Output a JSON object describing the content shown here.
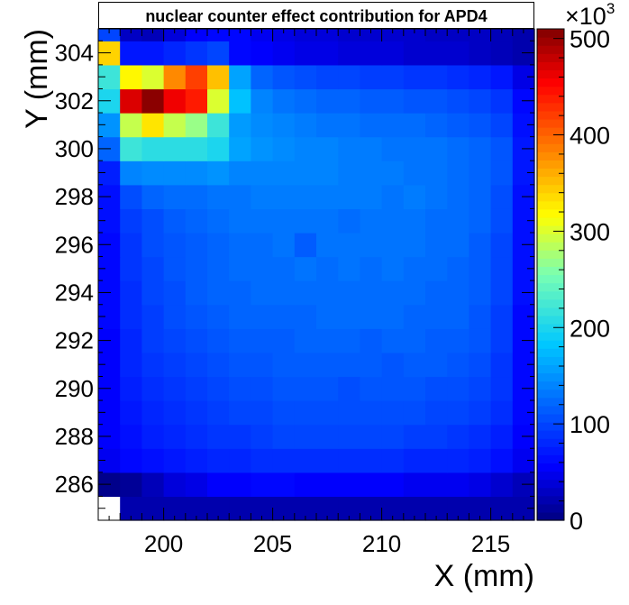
{
  "chart_data": {
    "type": "heatmap",
    "title": "nuclear counter effect contribution for APD4",
    "xlabel": "X (mm)",
    "ylabel": "Y (mm)",
    "xlim": [
      197,
      217
    ],
    "ylim": [
      284.5,
      305
    ],
    "x_ticks": [
      200,
      205,
      210,
      215
    ],
    "y_ticks": [
      286,
      288,
      290,
      292,
      294,
      296,
      298,
      300,
      302,
      304
    ],
    "colorbar": {
      "min": 0,
      "max": 510,
      "ticks": [
        0,
        100,
        200,
        300,
        400,
        500
      ],
      "multiplier_label": "×10",
      "multiplier_exponent": "3"
    },
    "x_bins": [
      197,
      198,
      199,
      200,
      201,
      202,
      203,
      204,
      205,
      206,
      207,
      208,
      209,
      210,
      211,
      212,
      213,
      214,
      215,
      216,
      217
    ],
    "y_bins": [
      284.5,
      285.5,
      286.5,
      287.5,
      288.5,
      289.5,
      290.5,
      291.5,
      292.5,
      293.5,
      294.5,
      295.5,
      296.5,
      297.5,
      298.5,
      299.5,
      300.5,
      301.5,
      302.5,
      303.5,
      304.5,
      305
    ],
    "values": [
      [
        -1,
        20,
        20,
        20,
        20,
        20,
        20,
        20,
        20,
        20,
        20,
        20,
        20,
        20,
        20,
        20,
        20,
        20,
        20,
        20
      ],
      [
        5,
        10,
        25,
        40,
        45,
        55,
        55,
        60,
        60,
        55,
        55,
        55,
        55,
        55,
        50,
        50,
        50,
        45,
        35,
        25
      ],
      [
        50,
        60,
        65,
        70,
        75,
        80,
        80,
        85,
        85,
        85,
        85,
        85,
        85,
        85,
        80,
        80,
        80,
        75,
        65,
        50
      ],
      [
        55,
        65,
        75,
        80,
        85,
        90,
        90,
        95,
        100,
        100,
        100,
        100,
        100,
        100,
        95,
        95,
        90,
        85,
        75,
        55
      ],
      [
        55,
        70,
        80,
        85,
        90,
        95,
        100,
        100,
        105,
        105,
        105,
        105,
        105,
        105,
        105,
        100,
        100,
        95,
        85,
        60
      ],
      [
        55,
        75,
        85,
        90,
        95,
        100,
        105,
        105,
        110,
        110,
        110,
        105,
        110,
        110,
        110,
        105,
        105,
        100,
        90,
        60
      ],
      [
        55,
        80,
        90,
        95,
        100,
        105,
        110,
        110,
        115,
        115,
        115,
        115,
        115,
        110,
        115,
        115,
        110,
        105,
        90,
        60
      ],
      [
        55,
        80,
        95,
        100,
        105,
        110,
        115,
        115,
        115,
        120,
        120,
        120,
        115,
        120,
        120,
        115,
        115,
        110,
        95,
        60
      ],
      [
        60,
        85,
        95,
        105,
        110,
        115,
        120,
        120,
        120,
        120,
        125,
        125,
        125,
        125,
        120,
        120,
        120,
        110,
        95,
        60
      ],
      [
        60,
        85,
        100,
        105,
        115,
        120,
        120,
        125,
        125,
        125,
        125,
        125,
        125,
        125,
        125,
        120,
        120,
        115,
        100,
        65
      ],
      [
        60,
        90,
        100,
        110,
        115,
        120,
        125,
        125,
        125,
        130,
        125,
        130,
        125,
        130,
        125,
        125,
        120,
        115,
        100,
        65
      ],
      [
        60,
        90,
        105,
        110,
        115,
        120,
        125,
        125,
        130,
        115,
        130,
        130,
        130,
        130,
        130,
        125,
        125,
        115,
        100,
        65
      ],
      [
        65,
        95,
        105,
        115,
        120,
        125,
        130,
        130,
        130,
        130,
        130,
        125,
        130,
        130,
        130,
        125,
        125,
        120,
        105,
        65
      ],
      [
        65,
        105,
        120,
        125,
        125,
        130,
        130,
        135,
        135,
        135,
        135,
        135,
        135,
        130,
        135,
        130,
        125,
        120,
        105,
        65
      ],
      [
        75,
        140,
        145,
        145,
        145,
        150,
        140,
        140,
        140,
        140,
        140,
        135,
        135,
        135,
        130,
        130,
        125,
        120,
        110,
        70
      ],
      [
        120,
        220,
        210,
        210,
        210,
        200,
        160,
        150,
        145,
        140,
        140,
        135,
        135,
        130,
        130,
        130,
        125,
        120,
        110,
        70
      ],
      [
        150,
        290,
        330,
        290,
        270,
        220,
        155,
        145,
        140,
        135,
        130,
        130,
        125,
        125,
        125,
        120,
        115,
        110,
        100,
        65
      ],
      [
        200,
        470,
        505,
        460,
        440,
        300,
        180,
        140,
        130,
        125,
        120,
        120,
        115,
        115,
        110,
        110,
        105,
        100,
        90,
        60
      ],
      [
        220,
        320,
        300,
        380,
        420,
        350,
        160,
        120,
        110,
        105,
        100,
        100,
        95,
        95,
        90,
        90,
        85,
        80,
        70,
        45
      ],
      [
        340,
        70,
        70,
        80,
        90,
        100,
        60,
        55,
        50,
        45,
        45,
        40,
        40,
        40,
        35,
        35,
        35,
        30,
        25,
        20
      ],
      [
        100,
        30,
        25,
        40,
        55,
        60,
        60,
        50,
        45,
        40,
        40,
        35,
        35,
        35,
        35,
        30,
        30,
        30,
        25,
        20
      ]
    ]
  }
}
